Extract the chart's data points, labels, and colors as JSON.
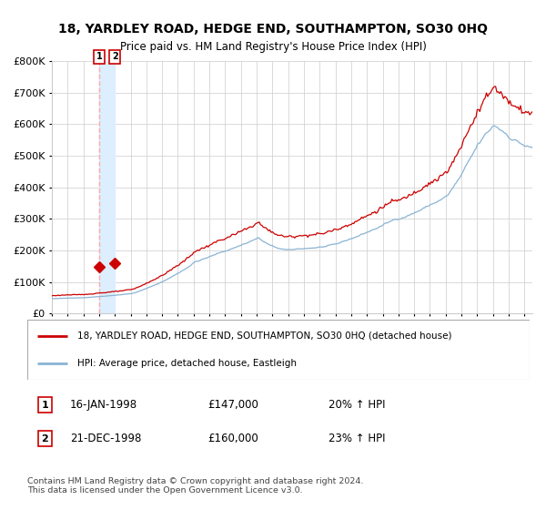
{
  "title": "18, YARDLEY ROAD, HEDGE END, SOUTHAMPTON, SO30 0HQ",
  "subtitle": "Price paid vs. HM Land Registry's House Price Index (HPI)",
  "legend_line1": "18, YARDLEY ROAD, HEDGE END, SOUTHAMPTON, SO30 0HQ (detached house)",
  "legend_line2": "HPI: Average price, detached house, Eastleigh",
  "transaction1_date": "16-JAN-1998",
  "transaction1_price": 147000,
  "transaction1_hpi": "20% ↑ HPI",
  "transaction2_date": "21-DEC-1998",
  "transaction2_price": 160000,
  "transaction2_hpi": "23% ↑ HPI",
  "copyright": "Contains HM Land Registry data © Crown copyright and database right 2024.\nThis data is licensed under the Open Government Licence v3.0.",
  "red_line_color": "#cc0000",
  "blue_line_color": "#8ab4d4",
  "dot_color": "#cc0000",
  "vline_color": "#ffaaaa",
  "vspan_color": "#ddeeff",
  "grid_color": "#cccccc",
  "background_color": "#ffffff",
  "ylim": [
    0,
    800000
  ],
  "xlim_start": 1995.0,
  "xlim_end": 2025.5
}
